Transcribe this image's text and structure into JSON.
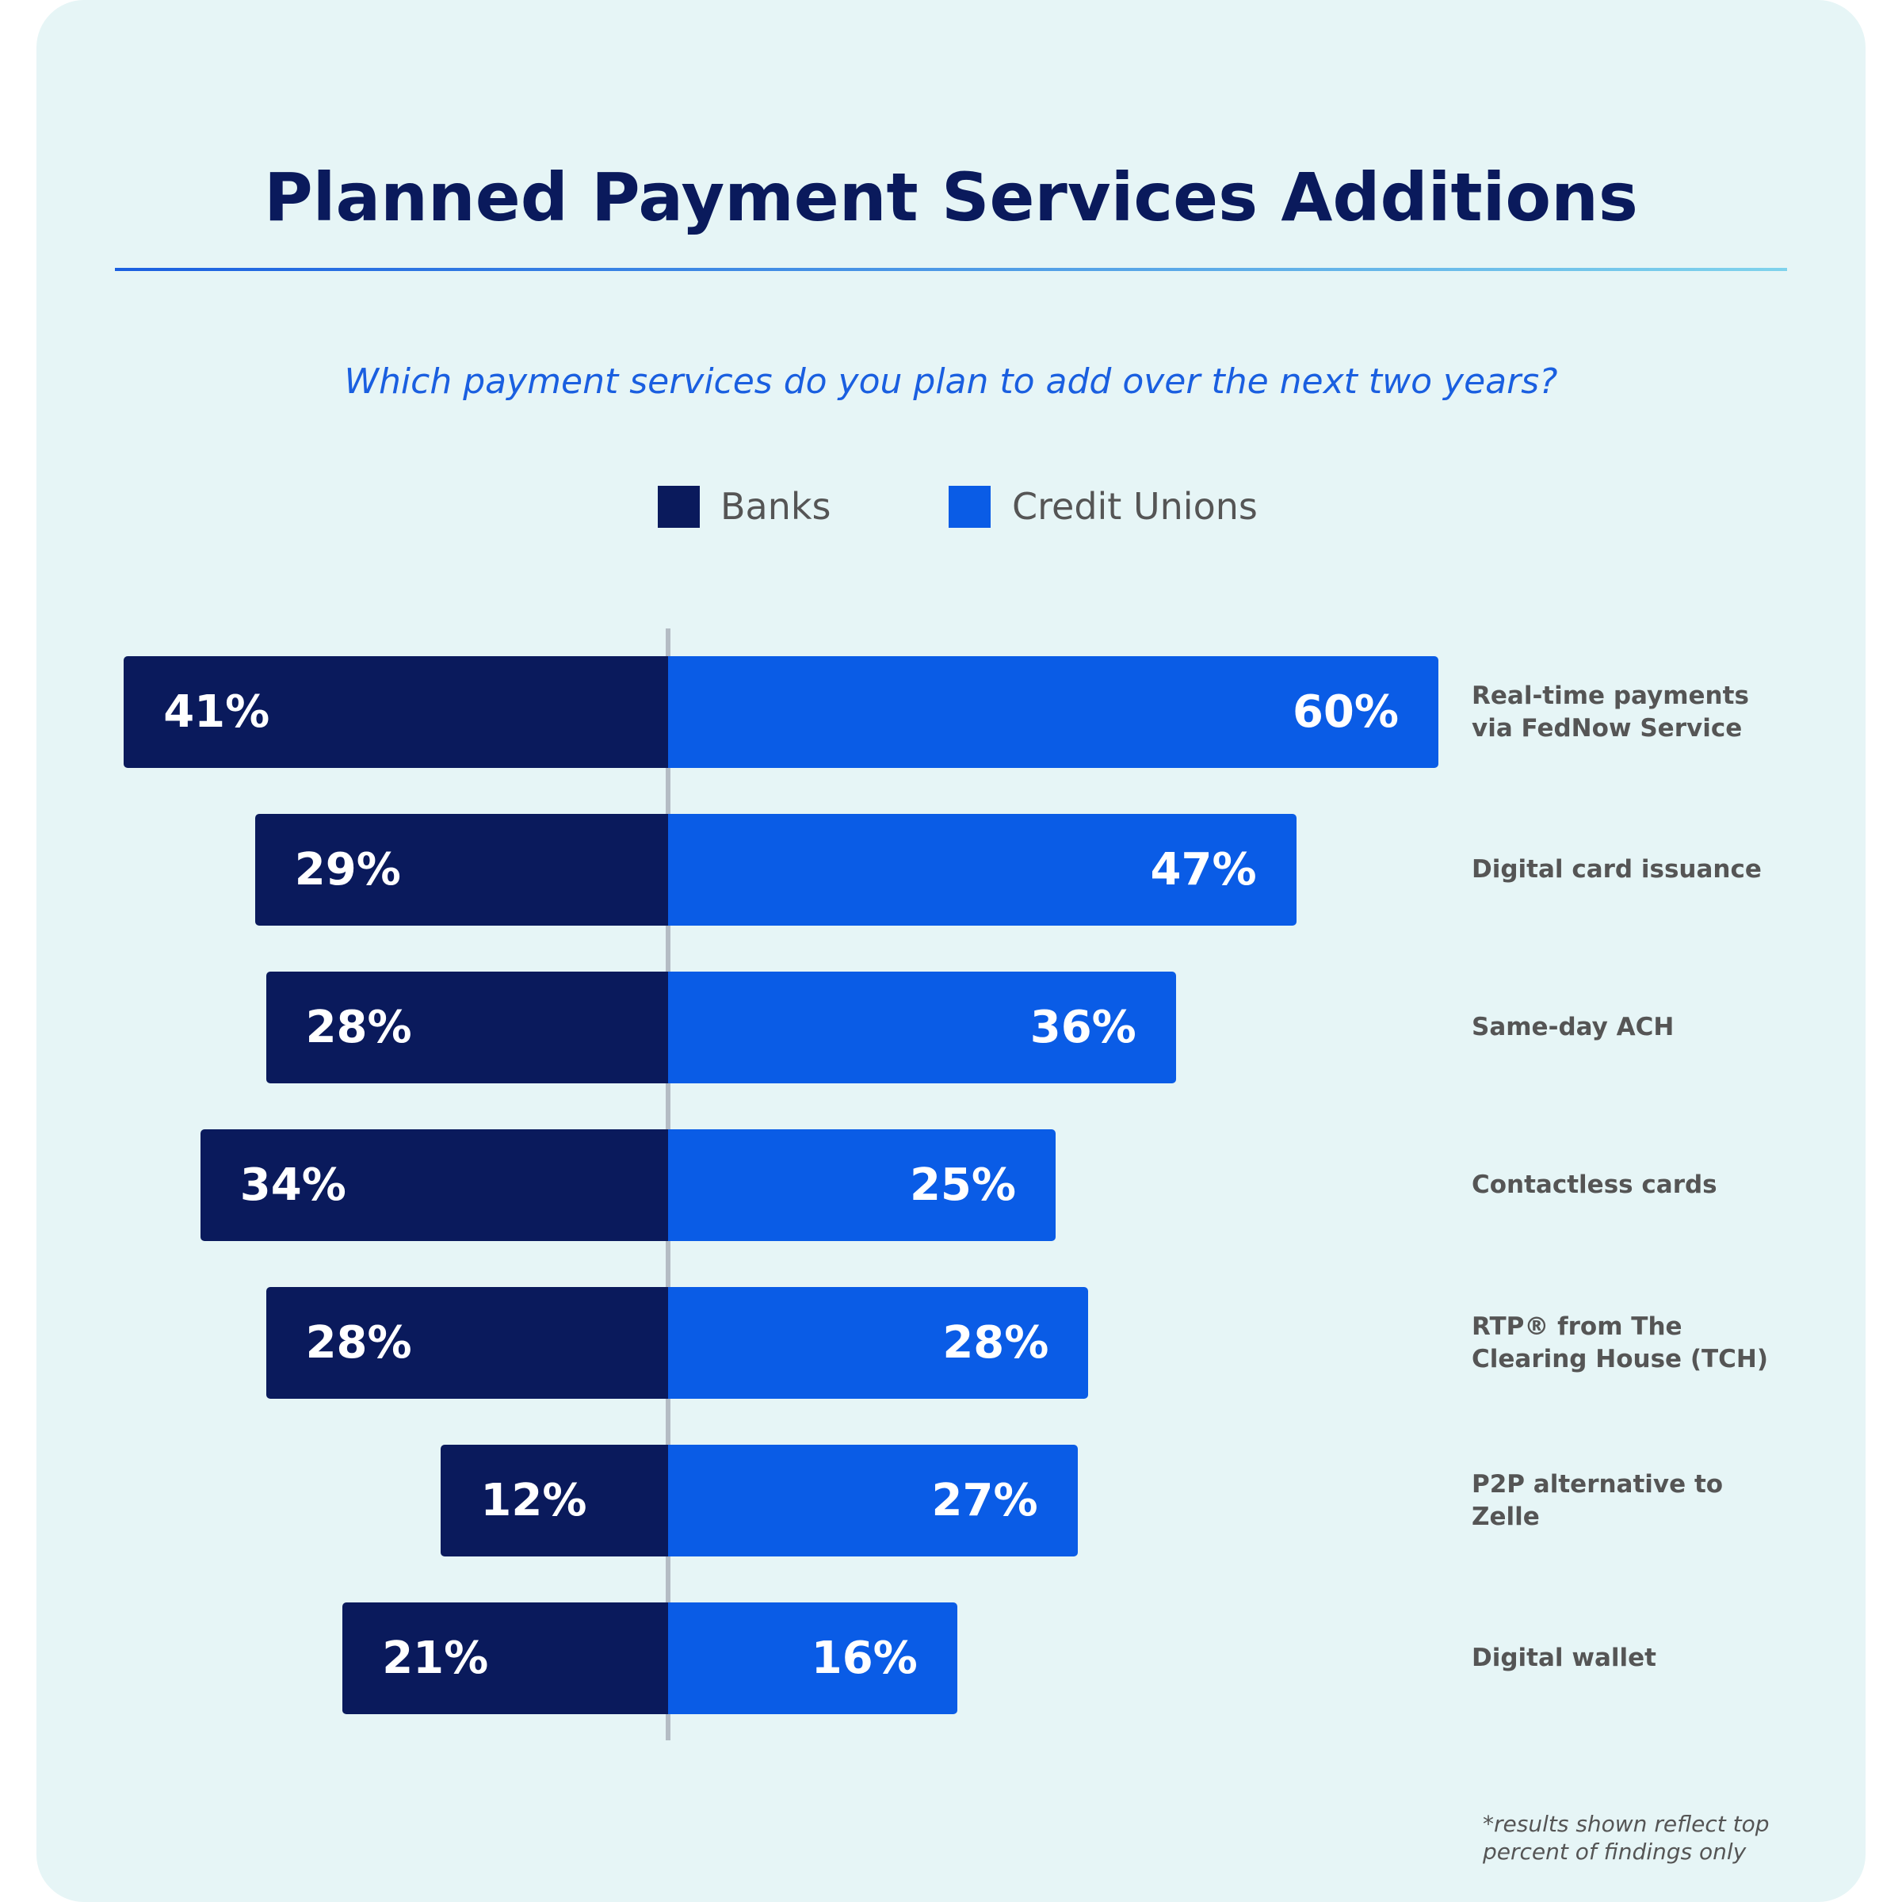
{
  "chart_data": {
    "type": "diverging_bar",
    "title": "Planned Payment Services Additions",
    "subtitle": "Which payment services do you plan to add over the next two years?",
    "note": "*results shown reflect top percent of findings only",
    "categories": [
      "Real-time payments via FedNow Service",
      "Digital card issuance",
      "Same-day ACH",
      "Contactless cards",
      "RTP® from The Clearing House (TCH)",
      "P2P alternative to Zelle",
      "Digital wallet"
    ],
    "series": [
      {
        "name": "Banks",
        "color": "#0a1a5c",
        "values": [
          41,
          29,
          28,
          34,
          28,
          12,
          21
        ],
        "value_labels": [
          "41%",
          "29%",
          "28%",
          "34%",
          "28%",
          "12%",
          "21%"
        ]
      },
      {
        "name": "Credit Unions",
        "color": "#0a5ce6",
        "values": [
          60,
          47,
          36,
          25,
          28,
          27,
          16
        ],
        "value_labels": [
          "60%",
          "47%",
          "36%",
          "25%",
          "28%",
          "27%",
          "16%"
        ]
      }
    ]
  }
}
